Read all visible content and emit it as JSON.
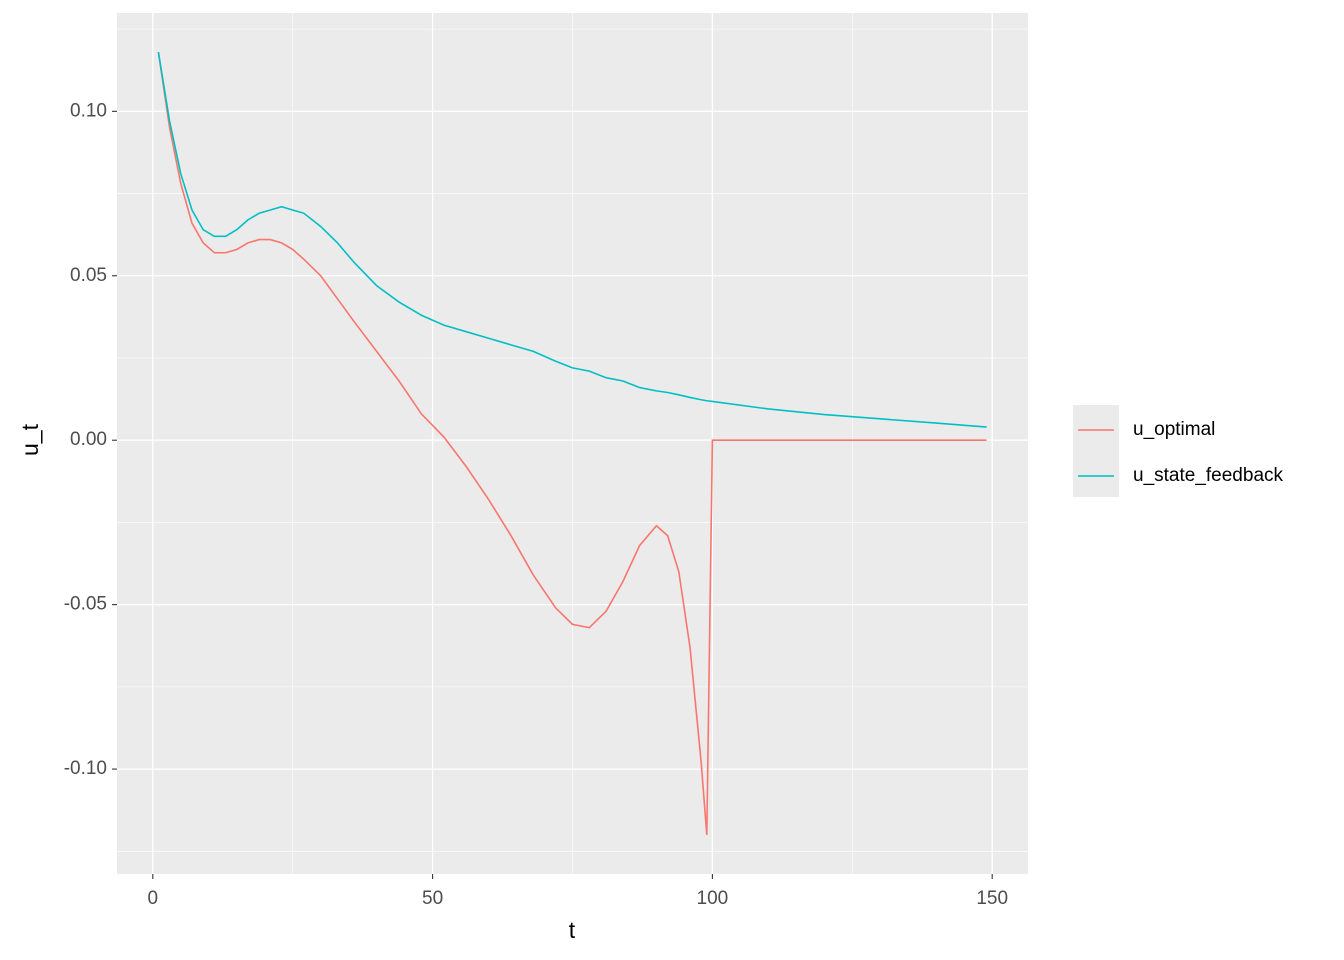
{
  "chart_data": {
    "type": "line",
    "x_label": "t",
    "y_label": "u_t",
    "x": [
      1,
      3,
      5,
      7,
      9,
      11,
      13,
      15,
      17,
      19,
      21,
      23,
      25,
      27,
      30,
      33,
      36,
      40,
      44,
      48,
      52,
      56,
      60,
      64,
      68,
      72,
      75,
      78,
      81,
      84,
      87,
      90,
      92,
      94,
      96,
      98,
      99,
      100,
      110,
      120,
      130,
      140,
      149
    ],
    "series": [
      {
        "name": "u_optimal",
        "color": "#F8766D",
        "values": [
          0.118,
          0.095,
          0.078,
          0.066,
          0.06,
          0.057,
          0.057,
          0.058,
          0.06,
          0.061,
          0.061,
          0.06,
          0.058,
          0.055,
          0.05,
          0.043,
          0.036,
          0.027,
          0.018,
          0.008,
          0.001,
          -0.008,
          -0.018,
          -0.029,
          -0.041,
          -0.051,
          -0.056,
          -0.057,
          -0.052,
          -0.043,
          -0.032,
          -0.026,
          -0.029,
          -0.04,
          -0.063,
          -0.098,
          -0.12,
          0,
          0,
          0,
          0,
          0,
          0
        ]
      },
      {
        "name": "u_state_feedback",
        "color": "#00BFC4",
        "values": [
          0.118,
          0.097,
          0.081,
          0.07,
          0.064,
          0.062,
          0.062,
          0.064,
          0.067,
          0.069,
          0.07,
          0.071,
          0.07,
          0.069,
          0.065,
          0.06,
          0.054,
          0.047,
          0.042,
          0.038,
          0.035,
          0.033,
          0.031,
          0.029,
          0.027,
          0.024,
          0.022,
          0.021,
          0.019,
          0.018,
          0.016,
          0.015,
          0.0145,
          0.0138,
          0.013,
          0.0123,
          0.012,
          0.0118,
          0.0095,
          0.0078,
          0.0065,
          0.0052,
          0.004
        ]
      }
    ],
    "xlim": [
      -6.4,
      156.4
    ],
    "ylim": [
      -0.1319,
      0.1299
    ],
    "xticks": [
      0,
      50,
      100,
      150
    ],
    "yticks": [
      {
        "value": -0.1,
        "label": "-0.10"
      },
      {
        "value": -0.05,
        "label": "-0.05"
      },
      {
        "value": 0,
        "label": "0.00"
      },
      {
        "value": 0.05,
        "label": "0.05"
      },
      {
        "value": 0.1,
        "label": "0.10"
      }
    ],
    "x_minor_ticks": [
      25,
      75,
      125
    ],
    "y_minor_ticks": [
      -0.125,
      -0.075,
      -0.025,
      0.025,
      0.075,
      0.125
    ],
    "grid": true,
    "legend_position": "right"
  }
}
